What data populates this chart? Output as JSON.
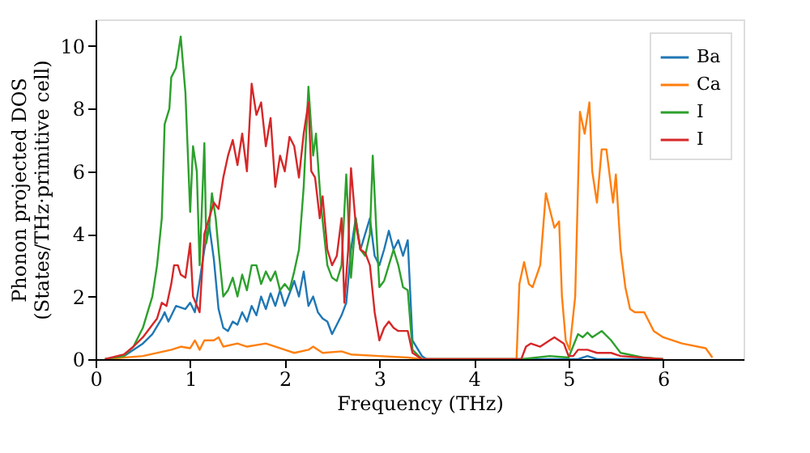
{
  "chart_data": {
    "type": "line",
    "xlabel": "Frequency (THz)",
    "ylabel": "Phonon projected DOS\n(States/THz·primitive cell)",
    "xlim": [
      0,
      6.85
    ],
    "xticks": [
      0,
      1,
      2,
      3,
      4,
      5,
      6
    ],
    "ylim": [
      0,
      10.85
    ],
    "yticks": [
      0,
      2,
      4,
      6,
      8,
      10
    ],
    "grid": false,
    "legend": "top right",
    "line_style": "solid",
    "marker": "none",
    "series": [
      {
        "name": "Ba",
        "color": "#1f77b4",
        "x": [
          0.1,
          0.3,
          0.5,
          0.6,
          0.7,
          0.73,
          0.77,
          0.85,
          0.95,
          1.0,
          1.05,
          1.1,
          1.15,
          1.2,
          1.25,
          1.3,
          1.35,
          1.4,
          1.45,
          1.5,
          1.55,
          1.6,
          1.65,
          1.7,
          1.75,
          1.8,
          1.85,
          1.9,
          1.95,
          2.0,
          2.05,
          2.1,
          2.15,
          2.2,
          2.25,
          2.3,
          2.35,
          2.4,
          2.45,
          2.5,
          2.55,
          2.6,
          2.65,
          2.7,
          2.75,
          2.8,
          2.85,
          2.9,
          2.95,
          3.0,
          3.05,
          3.1,
          3.15,
          3.2,
          3.25,
          3.3,
          3.35,
          3.45,
          3.5,
          5.1,
          5.2,
          5.3,
          6.0
        ],
        "values": [
          0,
          0.1,
          0.5,
          0.8,
          1.3,
          1.5,
          1.2,
          1.7,
          1.6,
          1.8,
          1.5,
          2.5,
          3.5,
          4.3,
          3.2,
          1.6,
          1.0,
          0.9,
          1.2,
          1.1,
          1.5,
          1.2,
          1.7,
          1.4,
          2.0,
          1.6,
          2.1,
          1.7,
          2.2,
          1.7,
          2.1,
          2.5,
          2.0,
          2.8,
          1.7,
          2.0,
          1.5,
          1.3,
          1.2,
          0.8,
          1.1,
          1.4,
          1.8,
          3.5,
          4.5,
          3.5,
          4.0,
          4.5,
          3.3,
          3.0,
          3.5,
          4.1,
          3.5,
          3.8,
          3.3,
          3.8,
          0.6,
          0.1,
          0,
          0,
          0.1,
          0,
          0
        ]
      },
      {
        "name": "Ca",
        "color": "#ff7f0e",
        "x": [
          0.1,
          0.5,
          0.8,
          0.9,
          1.0,
          1.05,
          1.1,
          1.15,
          1.25,
          1.3,
          1.35,
          1.5,
          1.6,
          1.8,
          2.0,
          2.1,
          2.25,
          2.3,
          2.4,
          2.6,
          2.7,
          3.0,
          3.3,
          3.45,
          4.45,
          4.48,
          4.53,
          4.58,
          4.62,
          4.7,
          4.76,
          4.8,
          4.85,
          4.9,
          4.93,
          4.97,
          5.01,
          5.07,
          5.12,
          5.17,
          5.22,
          5.25,
          5.3,
          5.35,
          5.4,
          5.47,
          5.5,
          5.55,
          5.6,
          5.65,
          5.7,
          5.8,
          5.85,
          5.9,
          6.0,
          6.2,
          6.45,
          6.52
        ],
        "values": [
          0,
          0.1,
          0.3,
          0.4,
          0.35,
          0.6,
          0.3,
          0.6,
          0.6,
          0.7,
          0.4,
          0.5,
          0.4,
          0.5,
          0.3,
          0.2,
          0.3,
          0.4,
          0.2,
          0.25,
          0.15,
          0.1,
          0.05,
          0,
          0,
          2.4,
          3.1,
          2.4,
          2.3,
          3.0,
          5.3,
          4.8,
          4.2,
          4.4,
          2.0,
          0.6,
          0.3,
          2.0,
          7.9,
          7.2,
          8.2,
          6.0,
          5.0,
          6.7,
          6.7,
          5.0,
          5.9,
          3.5,
          2.3,
          1.6,
          1.5,
          1.5,
          1.2,
          0.9,
          0.7,
          0.5,
          0.35,
          0.05
        ]
      },
      {
        "name": "I",
        "color": "#2ca02c",
        "x": [
          0.1,
          0.3,
          0.4,
          0.5,
          0.55,
          0.6,
          0.65,
          0.7,
          0.73,
          0.78,
          0.8,
          0.85,
          0.9,
          0.95,
          1.0,
          1.03,
          1.07,
          1.1,
          1.15,
          1.17,
          1.2,
          1.23,
          1.27,
          1.3,
          1.35,
          1.4,
          1.45,
          1.5,
          1.55,
          1.6,
          1.65,
          1.7,
          1.75,
          1.8,
          1.85,
          1.9,
          1.95,
          2.0,
          2.05,
          2.1,
          2.15,
          2.2,
          2.25,
          2.3,
          2.33,
          2.38,
          2.45,
          2.5,
          2.55,
          2.6,
          2.65,
          2.7,
          2.75,
          2.8,
          2.85,
          2.9,
          2.93,
          2.97,
          3.0,
          3.05,
          3.1,
          3.15,
          3.2,
          3.25,
          3.3,
          3.35,
          3.45,
          4.5,
          4.8,
          5.0,
          5.1,
          5.15,
          5.2,
          5.25,
          5.35,
          5.45,
          5.55,
          5.8,
          6.0
        ],
        "values": [
          0,
          0.1,
          0.4,
          1.0,
          1.5,
          2.0,
          3.0,
          4.5,
          7.5,
          8.0,
          9.0,
          9.3,
          10.3,
          8.5,
          4.7,
          6.8,
          6.0,
          3.0,
          6.9,
          3.7,
          4.2,
          5.3,
          4.5,
          3.5,
          2.0,
          2.2,
          2.6,
          2.0,
          2.7,
          2.2,
          3.0,
          3.0,
          2.4,
          2.8,
          2.5,
          2.8,
          2.2,
          2.4,
          2.2,
          2.8,
          3.5,
          5.5,
          8.7,
          6.5,
          7.2,
          5.0,
          3.0,
          2.6,
          2.5,
          3.0,
          5.9,
          2.6,
          4.5,
          3.5,
          3.3,
          4.0,
          6.5,
          4.0,
          2.3,
          2.5,
          3.0,
          3.5,
          3.0,
          2.3,
          2.2,
          0.3,
          0,
          0,
          0.1,
          0.05,
          0.8,
          0.7,
          0.85,
          0.7,
          0.9,
          0.6,
          0.2,
          0.05,
          0
        ]
      },
      {
        "name": "I",
        "color": "#d62728",
        "x": [
          0.1,
          0.3,
          0.4,
          0.5,
          0.6,
          0.65,
          0.7,
          0.75,
          0.8,
          0.83,
          0.87,
          0.9,
          0.95,
          1.0,
          1.03,
          1.1,
          1.15,
          1.2,
          1.25,
          1.3,
          1.35,
          1.4,
          1.45,
          1.5,
          1.55,
          1.6,
          1.65,
          1.7,
          1.75,
          1.8,
          1.85,
          1.9,
          1.95,
          2.0,
          2.05,
          2.1,
          2.15,
          2.2,
          2.25,
          2.28,
          2.32,
          2.37,
          2.4,
          2.45,
          2.5,
          2.55,
          2.6,
          2.63,
          2.67,
          2.7,
          2.75,
          2.8,
          2.85,
          2.9,
          2.95,
          3.0,
          3.05,
          3.1,
          3.15,
          3.2,
          3.25,
          3.3,
          3.35,
          3.45,
          4.5,
          4.55,
          4.6,
          4.7,
          4.8,
          4.85,
          4.95,
          5.0,
          5.05,
          5.1,
          5.2,
          5.3,
          5.45,
          5.55,
          6.0
        ],
        "values": [
          0,
          0.15,
          0.4,
          0.7,
          1.1,
          1.3,
          1.8,
          1.7,
          2.4,
          3.0,
          3.0,
          2.7,
          2.6,
          3.7,
          2.0,
          1.5,
          4.0,
          4.5,
          5.0,
          4.8,
          5.8,
          6.5,
          7.0,
          6.2,
          7.2,
          6.0,
          8.8,
          7.8,
          8.2,
          6.8,
          7.7,
          5.5,
          6.5,
          6.0,
          7.1,
          6.8,
          5.8,
          7.2,
          8.2,
          6.0,
          5.8,
          4.5,
          5.2,
          3.5,
          3.0,
          3.3,
          4.5,
          1.8,
          3.5,
          6.1,
          4.3,
          3.5,
          3.4,
          3.0,
          1.5,
          0.6,
          1.0,
          1.2,
          1.0,
          0.9,
          0.9,
          0.9,
          0.2,
          0,
          0,
          0.4,
          0.5,
          0.4,
          0.6,
          0.7,
          0.5,
          0.1,
          0.1,
          0.3,
          0.3,
          0.2,
          0.2,
          0.1,
          0
        ]
      }
    ]
  }
}
